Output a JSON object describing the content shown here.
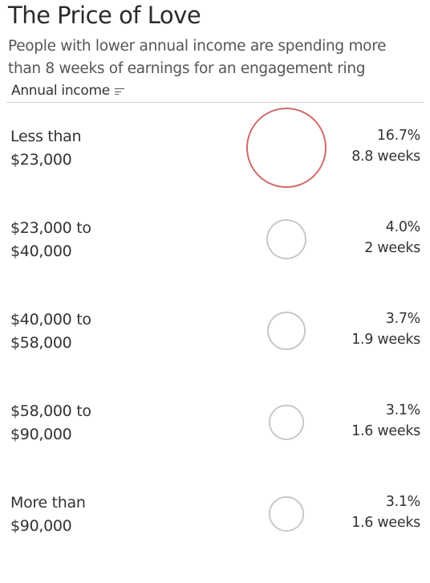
{
  "title": "The Price of Love",
  "subtitle": "People with lower annual income are spending more than 8 weeks of earnings for an engagement ring",
  "column_header": "Annual income",
  "colors": {
    "highlight": "#d06a6a",
    "default": "#c8c8c8"
  },
  "chart_data": {
    "type": "bubble",
    "title": "The Price of Love",
    "subtitle": "People with lower annual income are spending more than 8 weeks of earnings for an engagement ring",
    "dimension": "Annual income",
    "rows": [
      {
        "label_line1": "Less than",
        "label_line2": "$23,000",
        "percent": 16.7,
        "percent_label": "16.7%",
        "weeks": 8.8,
        "weeks_label": "8.8 weeks",
        "highlighted": true
      },
      {
        "label_line1": "$23,000 to",
        "label_line2": "$40,000",
        "percent": 4.0,
        "percent_label": "4.0%",
        "weeks": 2.0,
        "weeks_label": "2 weeks",
        "highlighted": false
      },
      {
        "label_line1": "$40,000 to",
        "label_line2": "$58,000",
        "percent": 3.7,
        "percent_label": "3.7%",
        "weeks": 1.9,
        "weeks_label": "1.9 weeks",
        "highlighted": false
      },
      {
        "label_line1": "$58,000 to",
        "label_line2": "$90,000",
        "percent": 3.1,
        "percent_label": "3.1%",
        "weeks": 1.6,
        "weeks_label": "1.6 weeks",
        "highlighted": false
      },
      {
        "label_line1": "More than",
        "label_line2": "$90,000",
        "percent": 3.1,
        "percent_label": "3.1%",
        "weeks": 1.6,
        "weeks_label": "1.6 weeks",
        "highlighted": false
      }
    ]
  }
}
